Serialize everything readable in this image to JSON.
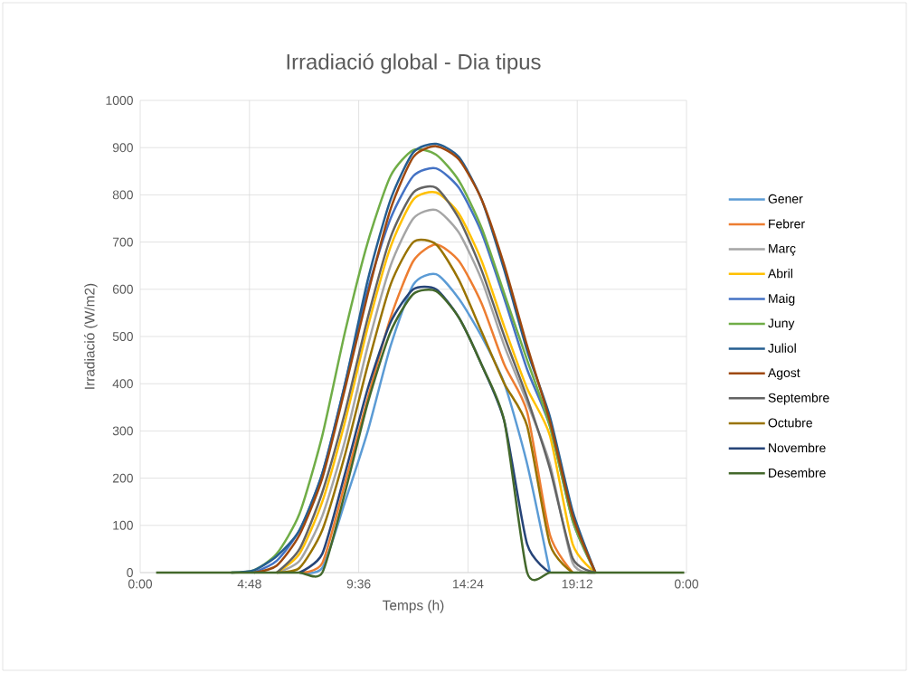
{
  "chart_data": {
    "type": "line",
    "title": "Irradiació global - Dia tipus",
    "xlabel": "Temps (h)",
    "ylabel": "Irradiació (W/m2)",
    "x": [
      0.7,
      1,
      2,
      3,
      4,
      5,
      6,
      7,
      8,
      9,
      10,
      11,
      12,
      13,
      14,
      15,
      16,
      17,
      18,
      19,
      20,
      21,
      22,
      23,
      23.9
    ],
    "xlim": [
      0,
      24
    ],
    "xticks": [
      {
        "value": 0,
        "label": "0:00"
      },
      {
        "value": 4.8,
        "label": "4:48"
      },
      {
        "value": 9.6,
        "label": "9:36"
      },
      {
        "value": 14.4,
        "label": "14:24"
      },
      {
        "value": 19.2,
        "label": "19:12"
      },
      {
        "value": 24,
        "label": "0:00"
      }
    ],
    "ylim": [
      0,
      1000
    ],
    "yticks": [
      0,
      100,
      200,
      300,
      400,
      500,
      600,
      700,
      800,
      900,
      1000
    ],
    "grid": true,
    "legend": "right",
    "line_style": "solid",
    "series": [
      {
        "name": "Gener",
        "color": "#5b9bd5",
        "values": [
          null,
          null,
          null,
          null,
          null,
          null,
          null,
          0,
          10,
          150,
          300,
          480,
          610,
          632,
          580,
          500,
          400,
          230,
          0,
          null,
          null,
          null,
          null,
          null,
          null
        ]
      },
      {
        "name": "Febrer",
        "color": "#ed7d31",
        "values": [
          null,
          null,
          null,
          null,
          null,
          null,
          null,
          0,
          20,
          190,
          370,
          540,
          660,
          695,
          660,
          570,
          440,
          340,
          80,
          0,
          null,
          null,
          null,
          null,
          null
        ]
      },
      {
        "name": "Març",
        "color": "#a5a5a5",
        "values": [
          null,
          null,
          null,
          null,
          null,
          null,
          0,
          25,
          120,
          280,
          480,
          650,
          750,
          768,
          720,
          620,
          480,
          360,
          230,
          20,
          0,
          null,
          null,
          null,
          null
        ]
      },
      {
        "name": "Abril",
        "color": "#ffc000",
        "values": [
          null,
          null,
          null,
          null,
          null,
          null,
          0,
          40,
          150,
          320,
          520,
          690,
          790,
          805,
          760,
          660,
          520,
          390,
          290,
          60,
          0,
          null,
          null,
          null,
          null
        ]
      },
      {
        "name": "Maig",
        "color": "#4472c4",
        "values": [
          null,
          null,
          null,
          null,
          null,
          0,
          25,
          90,
          210,
          400,
          600,
          750,
          840,
          856,
          815,
          720,
          580,
          430,
          310,
          110,
          0,
          null,
          null,
          null,
          null
        ]
      },
      {
        "name": "Juny",
        "color": "#70ad47",
        "values": [
          null,
          null,
          null,
          null,
          0,
          5,
          40,
          125,
          290,
          510,
          700,
          840,
          895,
          885,
          830,
          730,
          590,
          450,
          310,
          110,
          0,
          null,
          null,
          null,
          null
        ]
      },
      {
        "name": "Juliol",
        "color": "#255e91",
        "values": [
          null,
          null,
          null,
          null,
          0,
          5,
          35,
          90,
          210,
          400,
          620,
          790,
          890,
          908,
          880,
          790,
          640,
          470,
          330,
          130,
          0,
          null,
          null,
          null,
          null
        ]
      },
      {
        "name": "Agost",
        "color": "#9e480e",
        "values": [
          null,
          null,
          null,
          null,
          null,
          0,
          15,
          80,
          200,
          390,
          590,
          770,
          880,
          903,
          875,
          790,
          650,
          480,
          320,
          120,
          0,
          null,
          null,
          null,
          null
        ]
      },
      {
        "name": "Septembre",
        "color": "#636363",
        "values": [
          null,
          null,
          null,
          null,
          null,
          null,
          0,
          50,
          170,
          340,
          540,
          710,
          805,
          815,
          750,
          640,
          500,
          370,
          220,
          30,
          0,
          null,
          null,
          null,
          null
        ]
      },
      {
        "name": "Octubre",
        "color": "#997300",
        "values": [
          null,
          null,
          null,
          null,
          null,
          null,
          0,
          10,
          90,
          250,
          440,
          610,
          700,
          695,
          620,
          510,
          400,
          310,
          60,
          0,
          null,
          null,
          null,
          null,
          null
        ]
      },
      {
        "name": "Novembre",
        "color": "#264478",
        "values": [
          null,
          null,
          null,
          null,
          null,
          null,
          null,
          0,
          40,
          210,
          390,
          530,
          600,
          600,
          540,
          440,
          320,
          60,
          0,
          null,
          null,
          null,
          null,
          null,
          null
        ]
      },
      {
        "name": "Desembre",
        "color": "#43682b",
        "values": [
          0,
          0,
          0,
          0,
          0,
          0,
          0,
          0,
          0,
          170,
          360,
          510,
          590,
          596,
          540,
          440,
          320,
          0,
          0,
          0,
          0,
          0,
          0,
          0,
          0
        ]
      }
    ]
  }
}
